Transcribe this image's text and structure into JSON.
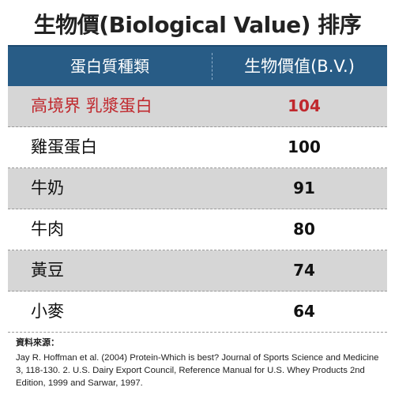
{
  "title": "生物價(Biological Value) 排序",
  "header": {
    "col1": "蛋白質種類",
    "col2": "生物價值(B.V.)"
  },
  "rows": [
    {
      "name": "高境界 乳漿蛋白",
      "value": "104"
    },
    {
      "name": "雞蛋蛋白",
      "value": "100"
    },
    {
      "name": "牛奶",
      "value": "91"
    },
    {
      "name": "牛肉",
      "value": "80"
    },
    {
      "name": "黃豆",
      "value": "74"
    },
    {
      "name": "小麥",
      "value": "64"
    }
  ],
  "references": {
    "label": "資料來源：",
    "text": "Jay R. Hoffman et al. (2004) Protein-Which is best? Journal of Sports Science and Medicine 3, 118-130.  2. U.S. Dairy Export Council, Reference Manual for U.S. Whey Products 2nd Edition, 1999 and Sarwar, 1997."
  },
  "colors": {
    "header_bg": "#285c86",
    "highlight": "#c0282d",
    "stripe": "#d6d6d6"
  }
}
